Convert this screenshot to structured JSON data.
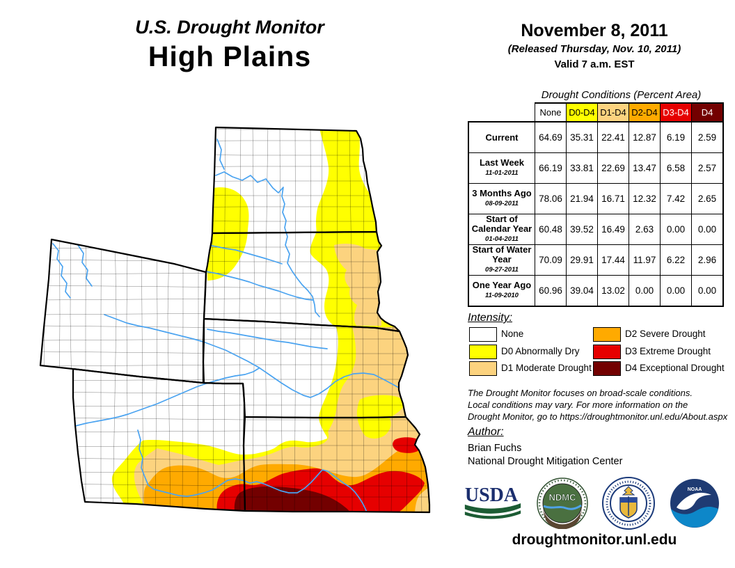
{
  "title": {
    "line1": "U.S. Drought Monitor",
    "region": "High Plains"
  },
  "date_block": {
    "date": "November 8, 2011",
    "released": "(Released Thursday, Nov. 10, 2011)",
    "valid": "Valid 7 a.m. EST"
  },
  "table": {
    "title": "Drought Conditions (Percent Area)",
    "columns": [
      "None",
      "D0-D4",
      "D1-D4",
      "D2-D4",
      "D3-D4",
      "D4"
    ],
    "column_colors": [
      "#FFFFFF",
      "#FFFF00",
      "#FCD37F",
      "#FFAA00",
      "#E60000",
      "#730000"
    ],
    "column_text_colors": [
      "#000000",
      "#000000",
      "#000000",
      "#000000",
      "#FFFFFF",
      "#FFFFFF"
    ],
    "rows": [
      {
        "label": "Current",
        "date": "",
        "values": [
          "64.69",
          "35.31",
          "22.41",
          "12.87",
          "6.19",
          "2.59"
        ]
      },
      {
        "label": "Last Week",
        "date": "11-01-2011",
        "values": [
          "66.19",
          "33.81",
          "22.69",
          "13.47",
          "6.58",
          "2.57"
        ]
      },
      {
        "label": "3 Months Ago",
        "date": "08-09-2011",
        "values": [
          "78.06",
          "21.94",
          "16.71",
          "12.32",
          "7.42",
          "2.65"
        ]
      },
      {
        "label": "Start of Calendar Year",
        "date": "01-04-2011",
        "values": [
          "60.48",
          "39.52",
          "16.49",
          "2.63",
          "0.00",
          "0.00"
        ]
      },
      {
        "label": "Start of Water Year",
        "date": "09-27-2011",
        "values": [
          "70.09",
          "29.91",
          "17.44",
          "11.97",
          "6.22",
          "2.96"
        ]
      },
      {
        "label": "One Year Ago",
        "date": "11-09-2010",
        "values": [
          "60.96",
          "39.04",
          "13.02",
          "0.00",
          "0.00",
          "0.00"
        ]
      }
    ]
  },
  "legend": {
    "heading": "Intensity:",
    "items": [
      {
        "label": "None",
        "color": "#FFFFFF"
      },
      {
        "label": "D0 Abnormally Dry",
        "color": "#FFFF00"
      },
      {
        "label": "D1 Moderate Drought",
        "color": "#FCD37F"
      },
      {
        "label": "D2 Severe Drought",
        "color": "#FFAA00"
      },
      {
        "label": "D3 Extreme Drought",
        "color": "#E60000"
      },
      {
        "label": "D4 Exceptional Drought",
        "color": "#730000"
      }
    ]
  },
  "disclaimer": {
    "line1": "The Drought Monitor focuses on broad-scale conditions.",
    "line2": "Local conditions may vary. For more information on the",
    "line3": "Drought Monitor, go to https://droughtmonitor.unl.edu/About.aspx"
  },
  "author": {
    "heading": "Author:",
    "name": "Brian Fuchs",
    "org": "National Drought Mitigation Center"
  },
  "logos": [
    {
      "name": "usda-logo",
      "label": "USDA"
    },
    {
      "name": "ndmc-logo",
      "label": "NDMC"
    },
    {
      "name": "doc-logo",
      "label": "U.S. Department of Commerce"
    },
    {
      "name": "noaa-logo",
      "label": "NOAA"
    }
  ],
  "footer_url": "droughtmonitor.unl.edu",
  "map": {
    "states": [
      "North Dakota",
      "South Dakota",
      "Nebraska",
      "Kansas",
      "Wyoming",
      "Colorado"
    ],
    "drought_colors": {
      "d0": "#FFFF00",
      "d1": "#FCD37F",
      "d2": "#FFAA00",
      "d3": "#E60000",
      "d4": "#730000"
    },
    "river_color": "#4AA3F0",
    "border_color": "#000000"
  }
}
